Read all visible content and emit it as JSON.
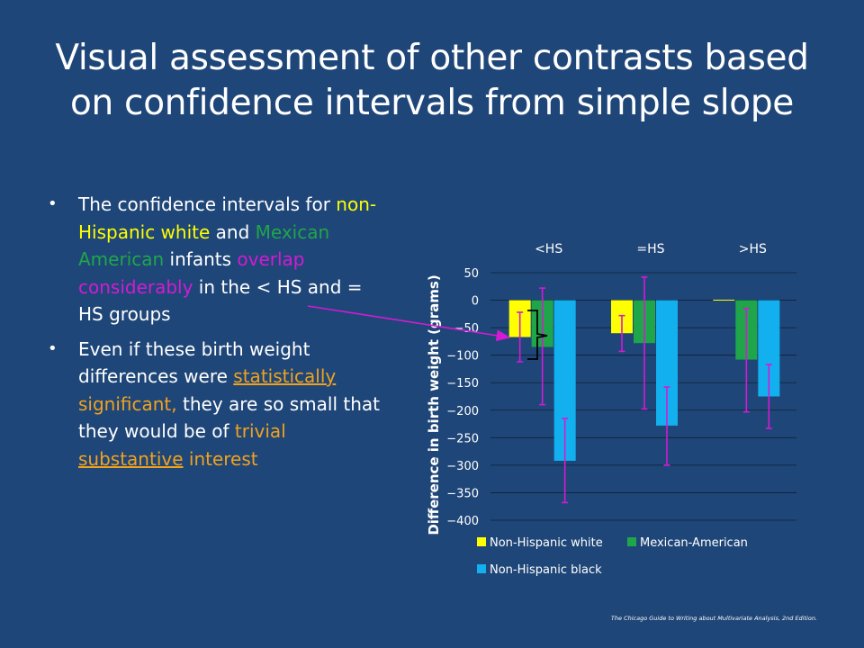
{
  "slide": {
    "title": "Visual assessment of other contrasts based on confidence intervals from simple slope",
    "bullets": [
      {
        "segments": [
          {
            "text": "The confidence intervals for ",
            "style": "white"
          },
          {
            "text": "non-Hispanic white",
            "style": "yellow"
          },
          {
            "text": " and ",
            "style": "white"
          },
          {
            "text": "Mexican American",
            "style": "green"
          },
          {
            "text": " infants ",
            "style": "white"
          },
          {
            "text": "overlap considerably",
            "style": "magenta"
          },
          {
            "text": " in the < HS and = HS groups",
            "style": "white"
          }
        ]
      },
      {
        "segments": [
          {
            "text": "Even if these birth weight differences were ",
            "style": "white"
          },
          {
            "text": "statistically",
            "style": "orange-underline"
          },
          {
            "text": " significant,",
            "style": "orange"
          },
          {
            "text": " they are so small that they would be of ",
            "style": "white"
          },
          {
            "text": "trivial",
            "style": "orange"
          },
          {
            "text": " ",
            "style": "white"
          },
          {
            "text": "substantive",
            "style": "orange-underline"
          },
          {
            "text": " interest",
            "style": "orange"
          }
        ]
      }
    ],
    "footer": "The Chicago Guide to Writing about Multivariate Analysis, 2nd Edition."
  },
  "colors": {
    "background": "#1f4678",
    "nh_white": "#ffff00",
    "mexican_american": "#1fa64a",
    "nh_black": "#12b0ee",
    "error_bar": "#d41ad4",
    "annotation_arrow": "#d41ad4",
    "bracket": "#000000"
  },
  "chart_data": {
    "type": "bar",
    "categories": [
      "<HS",
      "=HS",
      ">HS"
    ],
    "ylabel": "Difference in birth weight (grams)",
    "ylim": [
      -400,
      50
    ],
    "yticks": [
      50,
      0,
      -50,
      -100,
      -150,
      -200,
      -250,
      -300,
      -350,
      -400
    ],
    "grid": true,
    "legend_position": "bottom",
    "series": [
      {
        "name": "Non-Hispanic white",
        "color": "#ffff00",
        "values": [
          -67,
          -60,
          0
        ],
        "ci_low": [
          -112,
          -93,
          null
        ],
        "ci_high": [
          -22,
          -28,
          null
        ]
      },
      {
        "name": "Mexican-American",
        "color": "#1fa64a",
        "values": [
          -85,
          -78,
          -108
        ],
        "ci_low": [
          -190,
          -198,
          -203
        ],
        "ci_high": [
          22,
          42,
          -15
        ]
      },
      {
        "name": "Non-Hispanic black",
        "color": "#12b0ee",
        "values": [
          -292,
          -228,
          -175
        ],
        "ci_low": [
          -368,
          -300,
          -233
        ],
        "ci_high": [
          -215,
          -158,
          -117
        ]
      }
    ]
  }
}
